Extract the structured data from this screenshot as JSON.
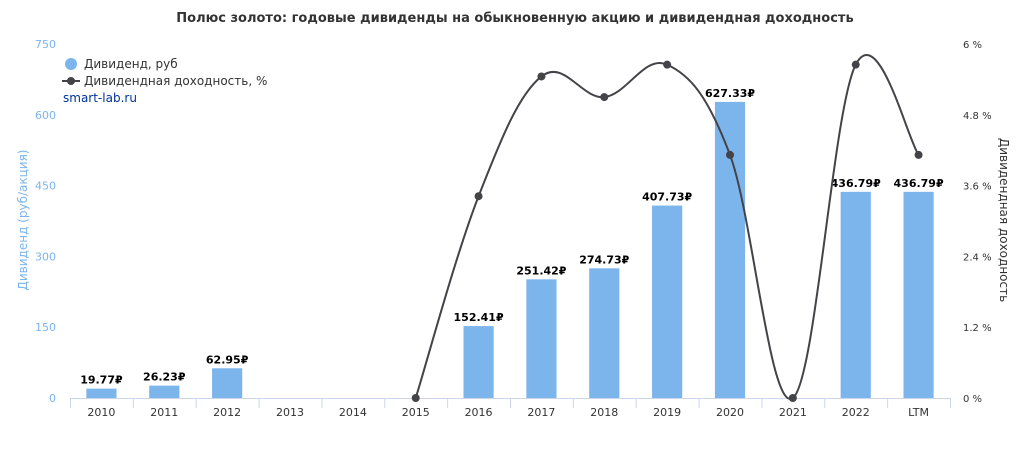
{
  "chart_data": {
    "type": "bar",
    "title": "Полюс золото: годовые дивиденды на обыкновенную акцию и дивидендная доходность",
    "categories": [
      "2010",
      "2011",
      "2012",
      "2013",
      "2014",
      "2015",
      "2016",
      "2017",
      "2018",
      "2019",
      "2020",
      "2021",
      "2022",
      "LTM"
    ],
    "series": [
      {
        "name": "Дивиденд, руб",
        "type": "bar",
        "axis": "left",
        "color": "#7cb5ec",
        "values": [
          19.77,
          26.23,
          62.95,
          null,
          null,
          null,
          152.41,
          251.42,
          274.73,
          407.73,
          627.33,
          null,
          436.79,
          436.79
        ],
        "labels": [
          "19.77₽",
          "26.23₽",
          "62.95₽",
          "",
          "",
          "",
          "152.41₽",
          "251.42₽",
          "274.73₽",
          "407.73₽",
          "627.33₽",
          "",
          "436.79₽",
          "436.79₽"
        ]
      },
      {
        "name": "Дивидендная доходность, %",
        "type": "spline",
        "axis": "right",
        "color": "#434348",
        "values": [
          null,
          null,
          null,
          null,
          null,
          0,
          3.42,
          5.45,
          5.1,
          5.65,
          4.12,
          0,
          5.65,
          4.12
        ]
      }
    ],
    "ylabel": "Дивиденд (руб/акция)",
    "ylim": [
      0,
      750
    ],
    "yticks": [
      "0",
      "150",
      "300",
      "450",
      "600",
      "750"
    ],
    "y2label": "Дивидендная доходность",
    "y2lim": [
      0,
      6
    ],
    "y2ticks": [
      "0 %",
      "1.2 %",
      "2.4 %",
      "3.6 %",
      "4.8 %",
      "6 %"
    ],
    "legend_position": "top-left",
    "grid": false
  },
  "credit": "smart-lab.ru"
}
